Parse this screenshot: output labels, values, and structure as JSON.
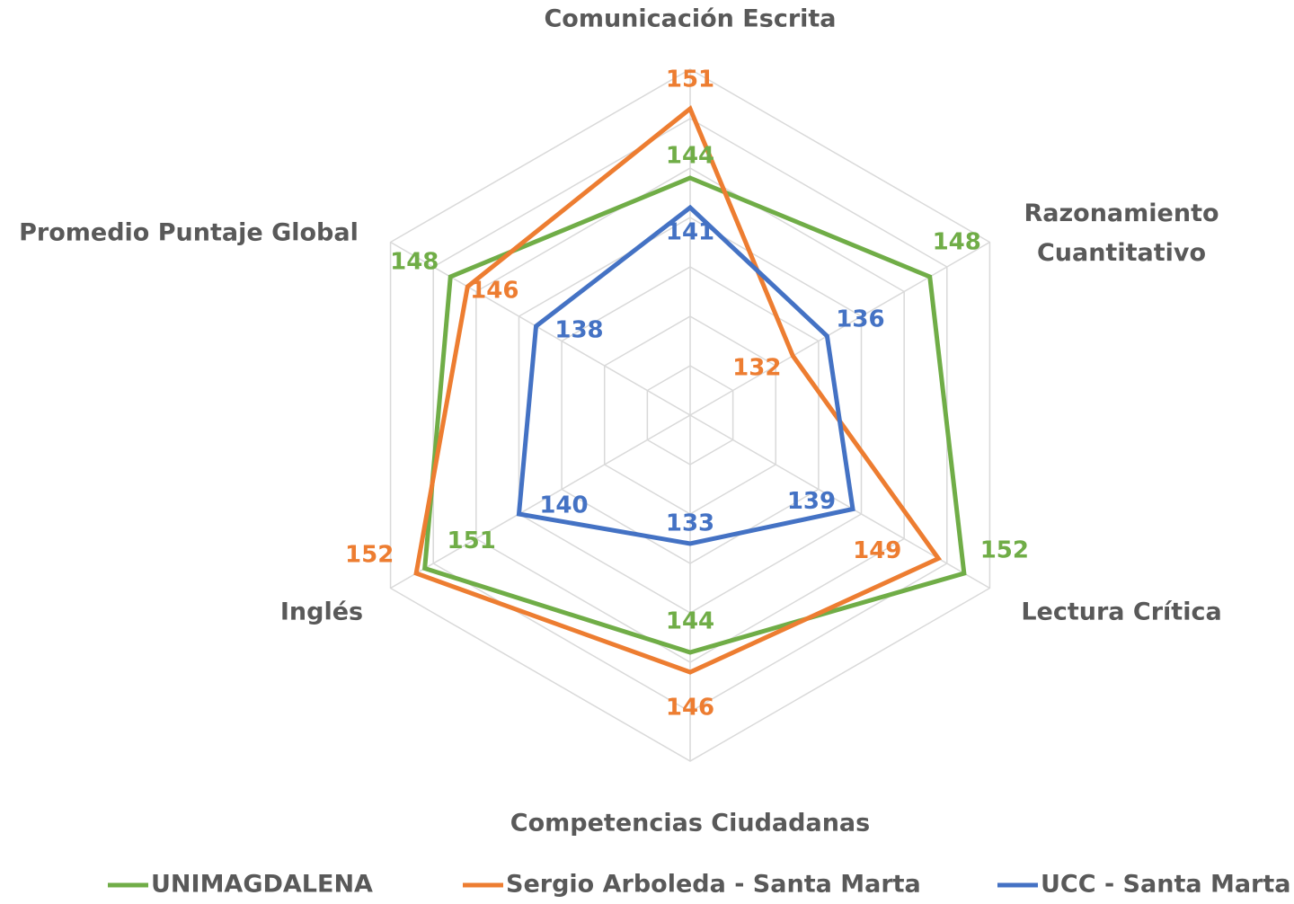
{
  "chart_data": {
    "type": "radar",
    "categories": [
      "Comunicación Escrita",
      "Razonamiento Cuantitativo",
      "Lectura Crítica",
      "Competencias Ciudadanas",
      "Inglés",
      "Promedio Puntaje Global"
    ],
    "series": [
      {
        "name": "UNIMAGDALENA",
        "color": "#70ad47",
        "values": [
          144,
          148,
          152,
          144,
          151,
          148
        ]
      },
      {
        "name": "Sergio Arboleda - Santa Marta",
        "color": "#ed7d31",
        "values": [
          151,
          132,
          149,
          146,
          152,
          146
        ]
      },
      {
        "name": "UCC - Santa Marta",
        "color": "#4472c4",
        "values": [
          141,
          136,
          139,
          133,
          140,
          138
        ]
      }
    ],
    "ylim": [
      120,
      155
    ],
    "yticks": [
      120,
      125,
      130,
      135,
      140,
      145,
      150,
      155
    ],
    "grid": true,
    "legend": "bottom"
  }
}
